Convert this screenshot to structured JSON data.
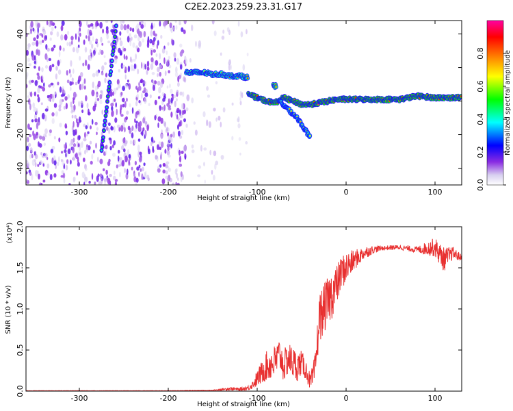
{
  "figure": {
    "title": "C2E2.2023.259.23.31.G17"
  },
  "chart_data": [
    {
      "type": "heatmap",
      "xlabel": "Height of straight line (km)",
      "ylabel": "Frequency (Hz)",
      "xlim": [
        -360,
        130
      ],
      "ylim": [
        -50,
        48
      ],
      "xticks": [
        -300,
        -200,
        -100,
        0,
        100
      ],
      "yticks": [
        -40,
        -20,
        0,
        20,
        40
      ],
      "grid": false,
      "colorbar": {
        "label": "Normalized spectral amplitude",
        "range": [
          0,
          1
        ],
        "ticks": [
          "0.0",
          "0.2",
          "0.4",
          "0.6",
          "0.8"
        ],
        "colormap": [
          "#d8d0f0",
          "#8a2be2",
          "#0000ff",
          "#00ffff",
          "#00ff00",
          "#ffff00",
          "#ff8000",
          "#ff0000",
          "#ff00a0"
        ]
      },
      "features": [
        {
          "x": [
            -275,
            -258
          ],
          "y": [
            -30,
            48
          ],
          "amplitude": 0.25
        },
        {
          "x": [
            -180,
            -160,
            -150,
            -140,
            -130,
            -120,
            -110
          ],
          "y": [
            17,
            17,
            16,
            16,
            15,
            15,
            14
          ],
          "amplitude": 0.55
        },
        {
          "x": [
            -110,
            -100,
            -90,
            -80,
            -70,
            -60,
            -50,
            -40,
            -30,
            -20,
            -10,
            0,
            20,
            40,
            60,
            80,
            100,
            130
          ],
          "y": [
            4,
            2,
            0,
            -1,
            2,
            0,
            -2,
            -2,
            -1,
            0,
            1,
            1,
            1,
            1,
            1,
            3,
            2,
            2
          ],
          "amplitude": 0.7
        },
        {
          "x": [
            -75,
            -65,
            -55,
            -50,
            -45,
            -40
          ],
          "y": [
            0,
            -5,
            -10,
            -14,
            -18,
            -22
          ],
          "amplitude": 0.45
        },
        {
          "x": [
            -82,
            -78
          ],
          "y": [
            9,
            9
          ],
          "amplitude": 0.6
        }
      ]
    },
    {
      "type": "line",
      "xlabel": "Height of straight line (km)",
      "ylabel": "SNR (10 * v/v)",
      "y_multiplier": "(x10⁴)",
      "xlim": [
        -360,
        130
      ],
      "ylim": [
        0,
        2.0
      ],
      "xticks": [
        -300,
        -200,
        -100,
        0,
        100
      ],
      "yticks": [
        "0.0",
        "0.5",
        "1.0",
        "1.5",
        "2.0"
      ],
      "grid": false,
      "series": [
        {
          "color": "#e83030",
          "x": [
            -360,
            -300,
            -250,
            -200,
            -150,
            -130,
            -120,
            -110,
            -105,
            -100,
            -90,
            -80,
            -75,
            -70,
            -65,
            -60,
            -55,
            -50,
            -45,
            -40,
            -35,
            -30,
            -25,
            -20,
            -15,
            -10,
            -5,
            0,
            10,
            20,
            30,
            40,
            60,
            80,
            100,
            110,
            120,
            130
          ],
          "y": [
            0.005,
            0.005,
            0.005,
            0.005,
            0.01,
            0.03,
            0.02,
            0.04,
            0.08,
            0.15,
            0.3,
            0.35,
            0.45,
            0.3,
            0.4,
            0.35,
            0.3,
            0.35,
            0.25,
            0.1,
            0.25,
            0.9,
            1.0,
            1.1,
            1.2,
            1.3,
            1.45,
            1.5,
            1.6,
            1.68,
            1.72,
            1.74,
            1.75,
            1.72,
            1.75,
            1.6,
            1.68,
            1.62
          ],
          "noise_amplitude": [
            0.002,
            0.002,
            0.002,
            0.002,
            0.004,
            0.02,
            0.02,
            0.03,
            0.05,
            0.1,
            0.18,
            0.22,
            0.2,
            0.2,
            0.2,
            0.2,
            0.18,
            0.15,
            0.12,
            0.1,
            0.2,
            0.3,
            0.3,
            0.3,
            0.3,
            0.25,
            0.2,
            0.2,
            0.12,
            0.08,
            0.05,
            0.03,
            0.03,
            0.04,
            0.12,
            0.15,
            0.08,
            0.04
          ]
        }
      ]
    }
  ]
}
